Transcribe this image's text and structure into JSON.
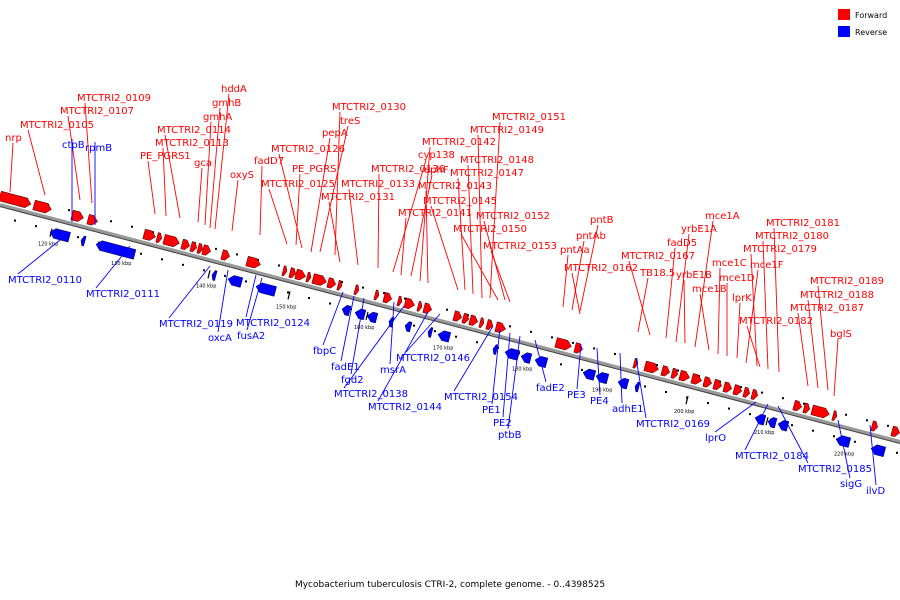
{
  "caption": "Mycobacterium tuberculosis CTRI-2, complete genome. - 0..4398525",
  "legend": [
    {
      "label": "Forward",
      "color": "#ff0000"
    },
    {
      "label": "Reverse",
      "color": "#0000ff"
    }
  ],
  "colors": {
    "forward": "#ff0000",
    "reverse": "#0000ff",
    "backbone": "#808080"
  },
  "ticks": [
    "120 kbp",
    "130 kbp",
    "140 kbp",
    "150 kbp",
    "160 kbp",
    "170 kbp",
    "180 kbp",
    "190 kbp",
    "200 kbp",
    "210 kbp",
    "220 kbp"
  ],
  "forward_labels": [
    "nrp",
    "MTCTRI2_0105",
    "MTCTRI2_0107",
    "MTCTRI2_0109",
    "PE_PGRS1",
    "MTCTRI2_0113",
    "MTCTRI2_0114",
    "gca",
    "gmhA",
    "gmhB",
    "hddA",
    "oxyS",
    "fadD7",
    "MTCTRI2_0125",
    "PE_PGRS",
    "MTCTRI2_0126",
    "pepA",
    "treS",
    "MTCTRI2_0130",
    "MTCTRI2_0131",
    "MTCTRI2_0133",
    "MTCTRI2_0136",
    "cyp138",
    "MTCTRI2_0141",
    "ephF",
    "MTCTRI2_0142",
    "MTCTRI2_0143",
    "MTCTRI2_0145",
    "MTCTRI2_0147",
    "MTCTRI2_0148",
    "MTCTRI2_0149",
    "MTCTRI2_0151",
    "MTCTRI2_0150",
    "MTCTRI2_0152",
    "MTCTRI2_0153",
    "pntAa",
    "pntAb",
    "pntB",
    "MTCTRI2_0162",
    "TB18.5",
    "MTCTRI2_0167",
    "fadD5",
    "yrbE1A",
    "yrbE1B",
    "mce1A",
    "mce1B",
    "mce1C",
    "mce1D",
    "lprK",
    "mce1F",
    "MTCTRI2_0179",
    "MTCTRI2_0180",
    "MTCTRI2_0181",
    "MTCTRI2_0182",
    "MTCTRI2_0187",
    "MTCTRI2_0188",
    "MTCTRI2_0189",
    "bglS"
  ],
  "reverse_labels": [
    "ctpB",
    "rpmB",
    "MTCTRI2_0110",
    "MTCTRI2_0111",
    "MTCTRI2_0119",
    "oxcA",
    "MTCTRI2_0124",
    "fusA2",
    "fbpC",
    "fadE1",
    "fgd2",
    "msrA",
    "MTCTRI2_0138",
    "MTCTRI2_0144",
    "MTCTRI2_0146",
    "MTCTRI2_0154",
    "PE1",
    "PE2",
    "ptbB",
    "fadE2",
    "PE3",
    "PE4",
    "adhE1",
    "MTCTRI2_0169",
    "lprO",
    "MTCTRI2_0184",
    "MTCTRI2_0185",
    "sigG",
    "ilvD"
  ]
}
